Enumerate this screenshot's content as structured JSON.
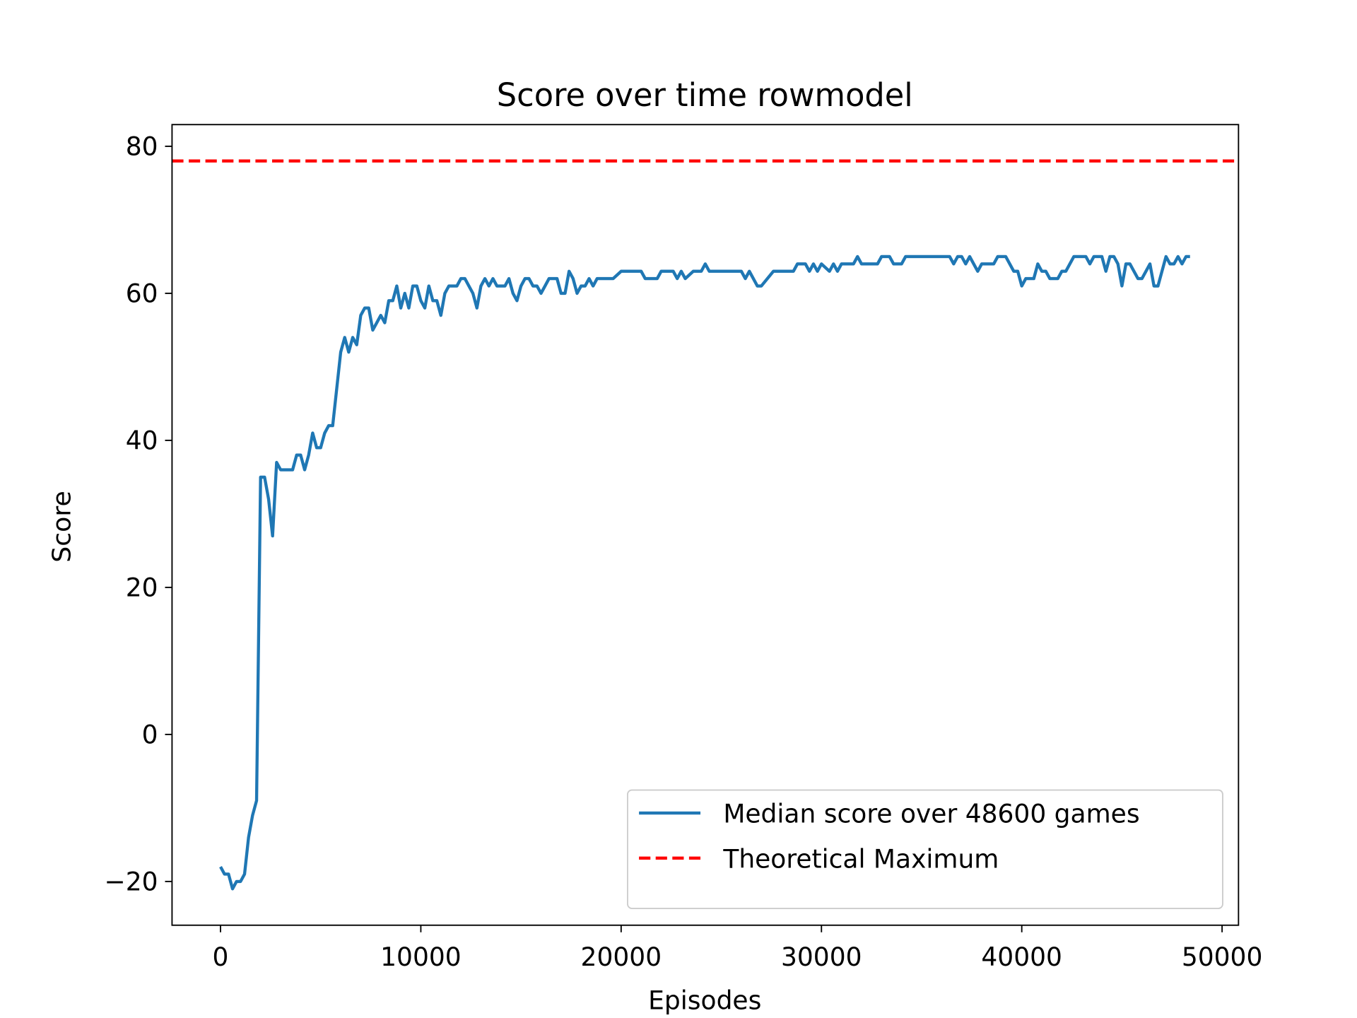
{
  "chart_data": {
    "type": "line",
    "title": "Score over time rowmodel",
    "xlabel": "Episodes",
    "ylabel": "Score",
    "xlim": [
      -2420,
      50820
    ],
    "ylim": [
      -25.95,
      82.95
    ],
    "xticks": [
      0,
      10000,
      20000,
      30000,
      40000,
      50000
    ],
    "yticks": [
      {
        "value": -20,
        "label": "−20"
      },
      0,
      20,
      40,
      60,
      80
    ],
    "legend": "lower right",
    "x": [
      0,
      200,
      400,
      600,
      800,
      1000,
      1200,
      1400,
      1600,
      1800,
      2000,
      2200,
      2400,
      2600,
      2800,
      3000,
      3200,
      3400,
      3600,
      3800,
      4000,
      4200,
      4400,
      4600,
      4800,
      5000,
      5200,
      5400,
      5600,
      5800,
      6000,
      6200,
      6400,
      6600,
      6800,
      7000,
      7200,
      7400,
      7600,
      7800,
      8000,
      8200,
      8400,
      8600,
      8800,
      9000,
      9200,
      9400,
      9600,
      9800,
      10000,
      10200,
      10400,
      10600,
      10800,
      11000,
      11200,
      11400,
      11600,
      11800,
      12000,
      12200,
      12400,
      12600,
      12800,
      13000,
      13200,
      13400,
      13600,
      13800,
      14000,
      14200,
      14400,
      14600,
      14800,
      15000,
      15200,
      15400,
      15600,
      15800,
      16000,
      16200,
      16400,
      16600,
      16800,
      17000,
      17200,
      17400,
      17600,
      17800,
      18000,
      18200,
      18400,
      18600,
      18800,
      19000,
      19600,
      20000,
      20600,
      21000,
      21200,
      21800,
      22000,
      22600,
      22800,
      23000,
      23200,
      23600,
      24000,
      24200,
      24400,
      25000,
      25600,
      26000,
      26200,
      26400,
      26800,
      27000,
      27600,
      28000,
      28600,
      28800,
      29200,
      29400,
      29600,
      29800,
      30000,
      30400,
      30600,
      30800,
      31000,
      31600,
      31800,
      32000,
      32800,
      33000,
      33400,
      33600,
      34000,
      34200,
      35000,
      36000,
      36400,
      36600,
      36800,
      37000,
      37200,
      37400,
      37600,
      37800,
      38000,
      38600,
      38800,
      39200,
      39600,
      39800,
      40000,
      40200,
      40600,
      40800,
      41000,
      41200,
      41400,
      41800,
      42000,
      42200,
      42600,
      43200,
      43400,
      43600,
      44000,
      44200,
      44400,
      44600,
      44800,
      45000,
      45200,
      45400,
      45600,
      45800,
      46000,
      46400,
      46600,
      46800,
      47000,
      47200,
      47400,
      47600,
      47800,
      48000,
      48200,
      48400
    ],
    "series": [
      {
        "name": "Median score over 48600 games",
        "color": "#1f77b4",
        "values": [
          -18,
          -19,
          -19,
          -21,
          -20,
          -20,
          -19,
          -14,
          -11,
          -9,
          35,
          35,
          32,
          27,
          37,
          36,
          36,
          36,
          36,
          38,
          38,
          36,
          38,
          41,
          39,
          39,
          41,
          42,
          42,
          47,
          52,
          54,
          52,
          54,
          53,
          57,
          58,
          58,
          55,
          56,
          57,
          56,
          59,
          59,
          61,
          58,
          60,
          58,
          61,
          61,
          59,
          58,
          61,
          59,
          59,
          57,
          60,
          61,
          61,
          61,
          62,
          62,
          61,
          60,
          58,
          61,
          62,
          61,
          62,
          61,
          61,
          61,
          62,
          60,
          59,
          61,
          62,
          62,
          61,
          61,
          60,
          61,
          62,
          62,
          62,
          60,
          60,
          63,
          62,
          60,
          61,
          61,
          62,
          61,
          62,
          62,
          62,
          63,
          63,
          63,
          62,
          62,
          63,
          63,
          62,
          63,
          62,
          63,
          63,
          64,
          63,
          63,
          63,
          63,
          62,
          63,
          61,
          61,
          63,
          63,
          63,
          64,
          64,
          63,
          64,
          63,
          64,
          63,
          64,
          63,
          64,
          64,
          65,
          64,
          64,
          65,
          65,
          64,
          64,
          65,
          65,
          65,
          65,
          64,
          65,
          65,
          64,
          65,
          64,
          63,
          64,
          64,
          65,
          65,
          63,
          63,
          61,
          62,
          62,
          64,
          63,
          63,
          62,
          62,
          63,
          63,
          65,
          65,
          64,
          65,
          65,
          63,
          65,
          65,
          64,
          61,
          64,
          64,
          63,
          62,
          62,
          64,
          61,
          61,
          63,
          65,
          64,
          64,
          65,
          64,
          65,
          65
        ]
      }
    ],
    "reference_line": {
      "name": "Theoretical Maximum",
      "value": 78,
      "color": "#ff0000",
      "style": "dashed"
    }
  }
}
